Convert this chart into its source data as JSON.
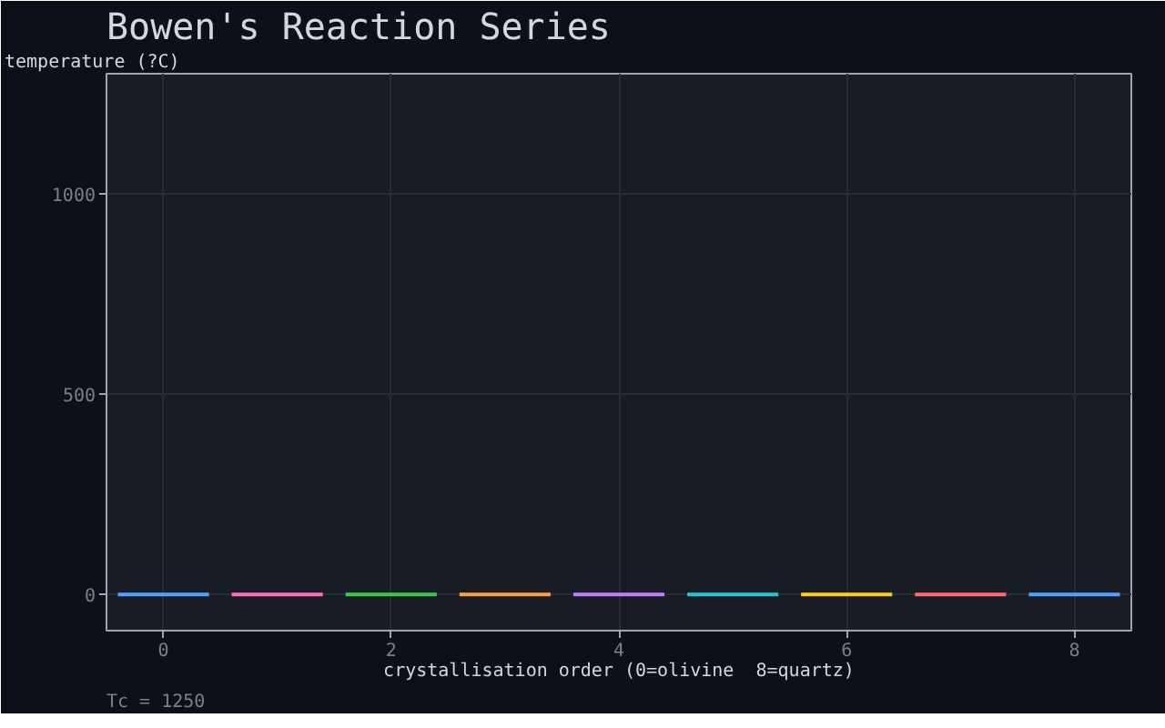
{
  "chart_data": {
    "type": "bar",
    "title": "Bowen's Reaction Series",
    "xlabel": "crystallisation order (0=olivine  8=quartz)",
    "ylabel": "temperature (?C)",
    "annotations": [
      "Tc = 1250"
    ],
    "x": [
      0,
      1,
      2,
      3,
      4,
      5,
      6,
      7,
      8
    ],
    "values": [
      0,
      0,
      0,
      0,
      0,
      0,
      0,
      0,
      0
    ],
    "colors": [
      "#4da3ff",
      "#ff6eb4",
      "#3ec94a",
      "#ff9f43",
      "#c17cff",
      "#22c5d3",
      "#ffcc22",
      "#ff6b6b",
      "#4da3ff"
    ],
    "xlim": [
      -0.5,
      8.5
    ],
    "xticks": [
      0,
      2,
      4,
      6,
      8
    ],
    "ylim": [
      -90,
      1300
    ],
    "yticks": [
      0,
      500,
      1000
    ],
    "grid": true
  }
}
